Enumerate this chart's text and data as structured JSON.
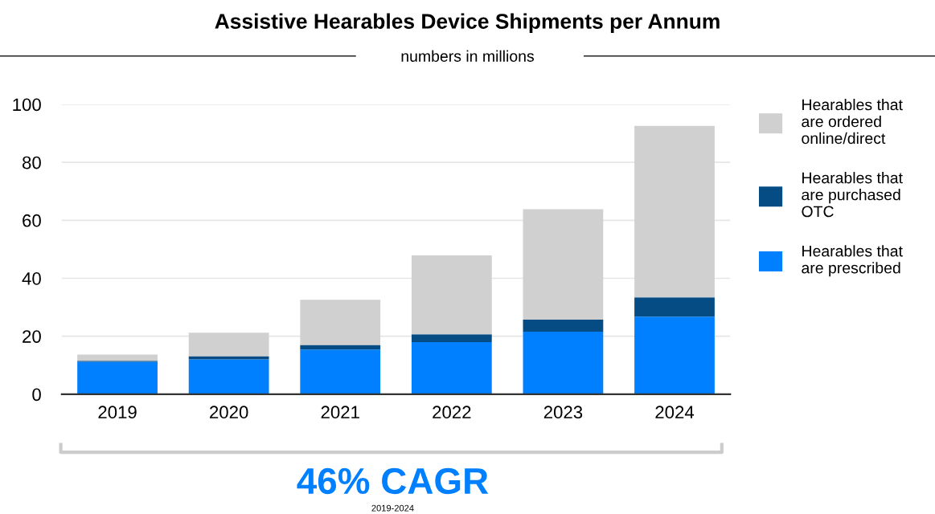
{
  "chart_data": {
    "type": "bar",
    "stacked": true,
    "title": "Assistive Hearables Device Shipments per Annum",
    "subtitle": "numbers in millions",
    "categories": [
      "2019",
      "2020",
      "2021",
      "2022",
      "2023",
      "2024"
    ],
    "series": [
      {
        "name": "Hearables that are prescribed",
        "color": "#0080ff",
        "values": [
          11.2,
          12.0,
          15.4,
          18.0,
          21.6,
          26.8
        ]
      },
      {
        "name": "Hearables that are purchased OTC",
        "color": "#054c85",
        "values": [
          0.3,
          1.1,
          1.6,
          2.7,
          4.1,
          6.6
        ]
      },
      {
        "name": "Hearables that are ordered online/direct",
        "color": "#d0d0d0",
        "values": [
          2.2,
          8.1,
          15.6,
          27.2,
          38.1,
          59.2
        ]
      }
    ],
    "ylim": [
      0,
      100
    ],
    "yticks": [
      0,
      20,
      40,
      60,
      80,
      100
    ],
    "grid": "y",
    "legend": "right",
    "annotations": [
      "46% CAGR",
      "2019-2024"
    ]
  }
}
